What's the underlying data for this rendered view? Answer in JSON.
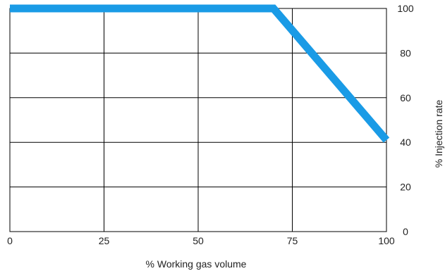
{
  "chart_data": {
    "type": "line",
    "xlabel": "% Working gas volume",
    "ylabel": "% Injection rate",
    "xlim": [
      0,
      100
    ],
    "ylim": [
      0,
      100
    ],
    "x_ticks": [
      0,
      25,
      50,
      75,
      100
    ],
    "y_ticks": [
      0,
      20,
      40,
      60,
      80,
      100
    ],
    "x_tick_labels": [
      "0",
      "25",
      "50",
      "75",
      "100"
    ],
    "y_tick_labels": [
      "0",
      "20",
      "40",
      "60",
      "80",
      "100"
    ],
    "grid": true,
    "y_axis_side": "right",
    "series": [
      {
        "color": "#1a9be6",
        "x": [
          0,
          70,
          100
        ],
        "y": [
          100,
          100,
          41
        ]
      }
    ]
  }
}
